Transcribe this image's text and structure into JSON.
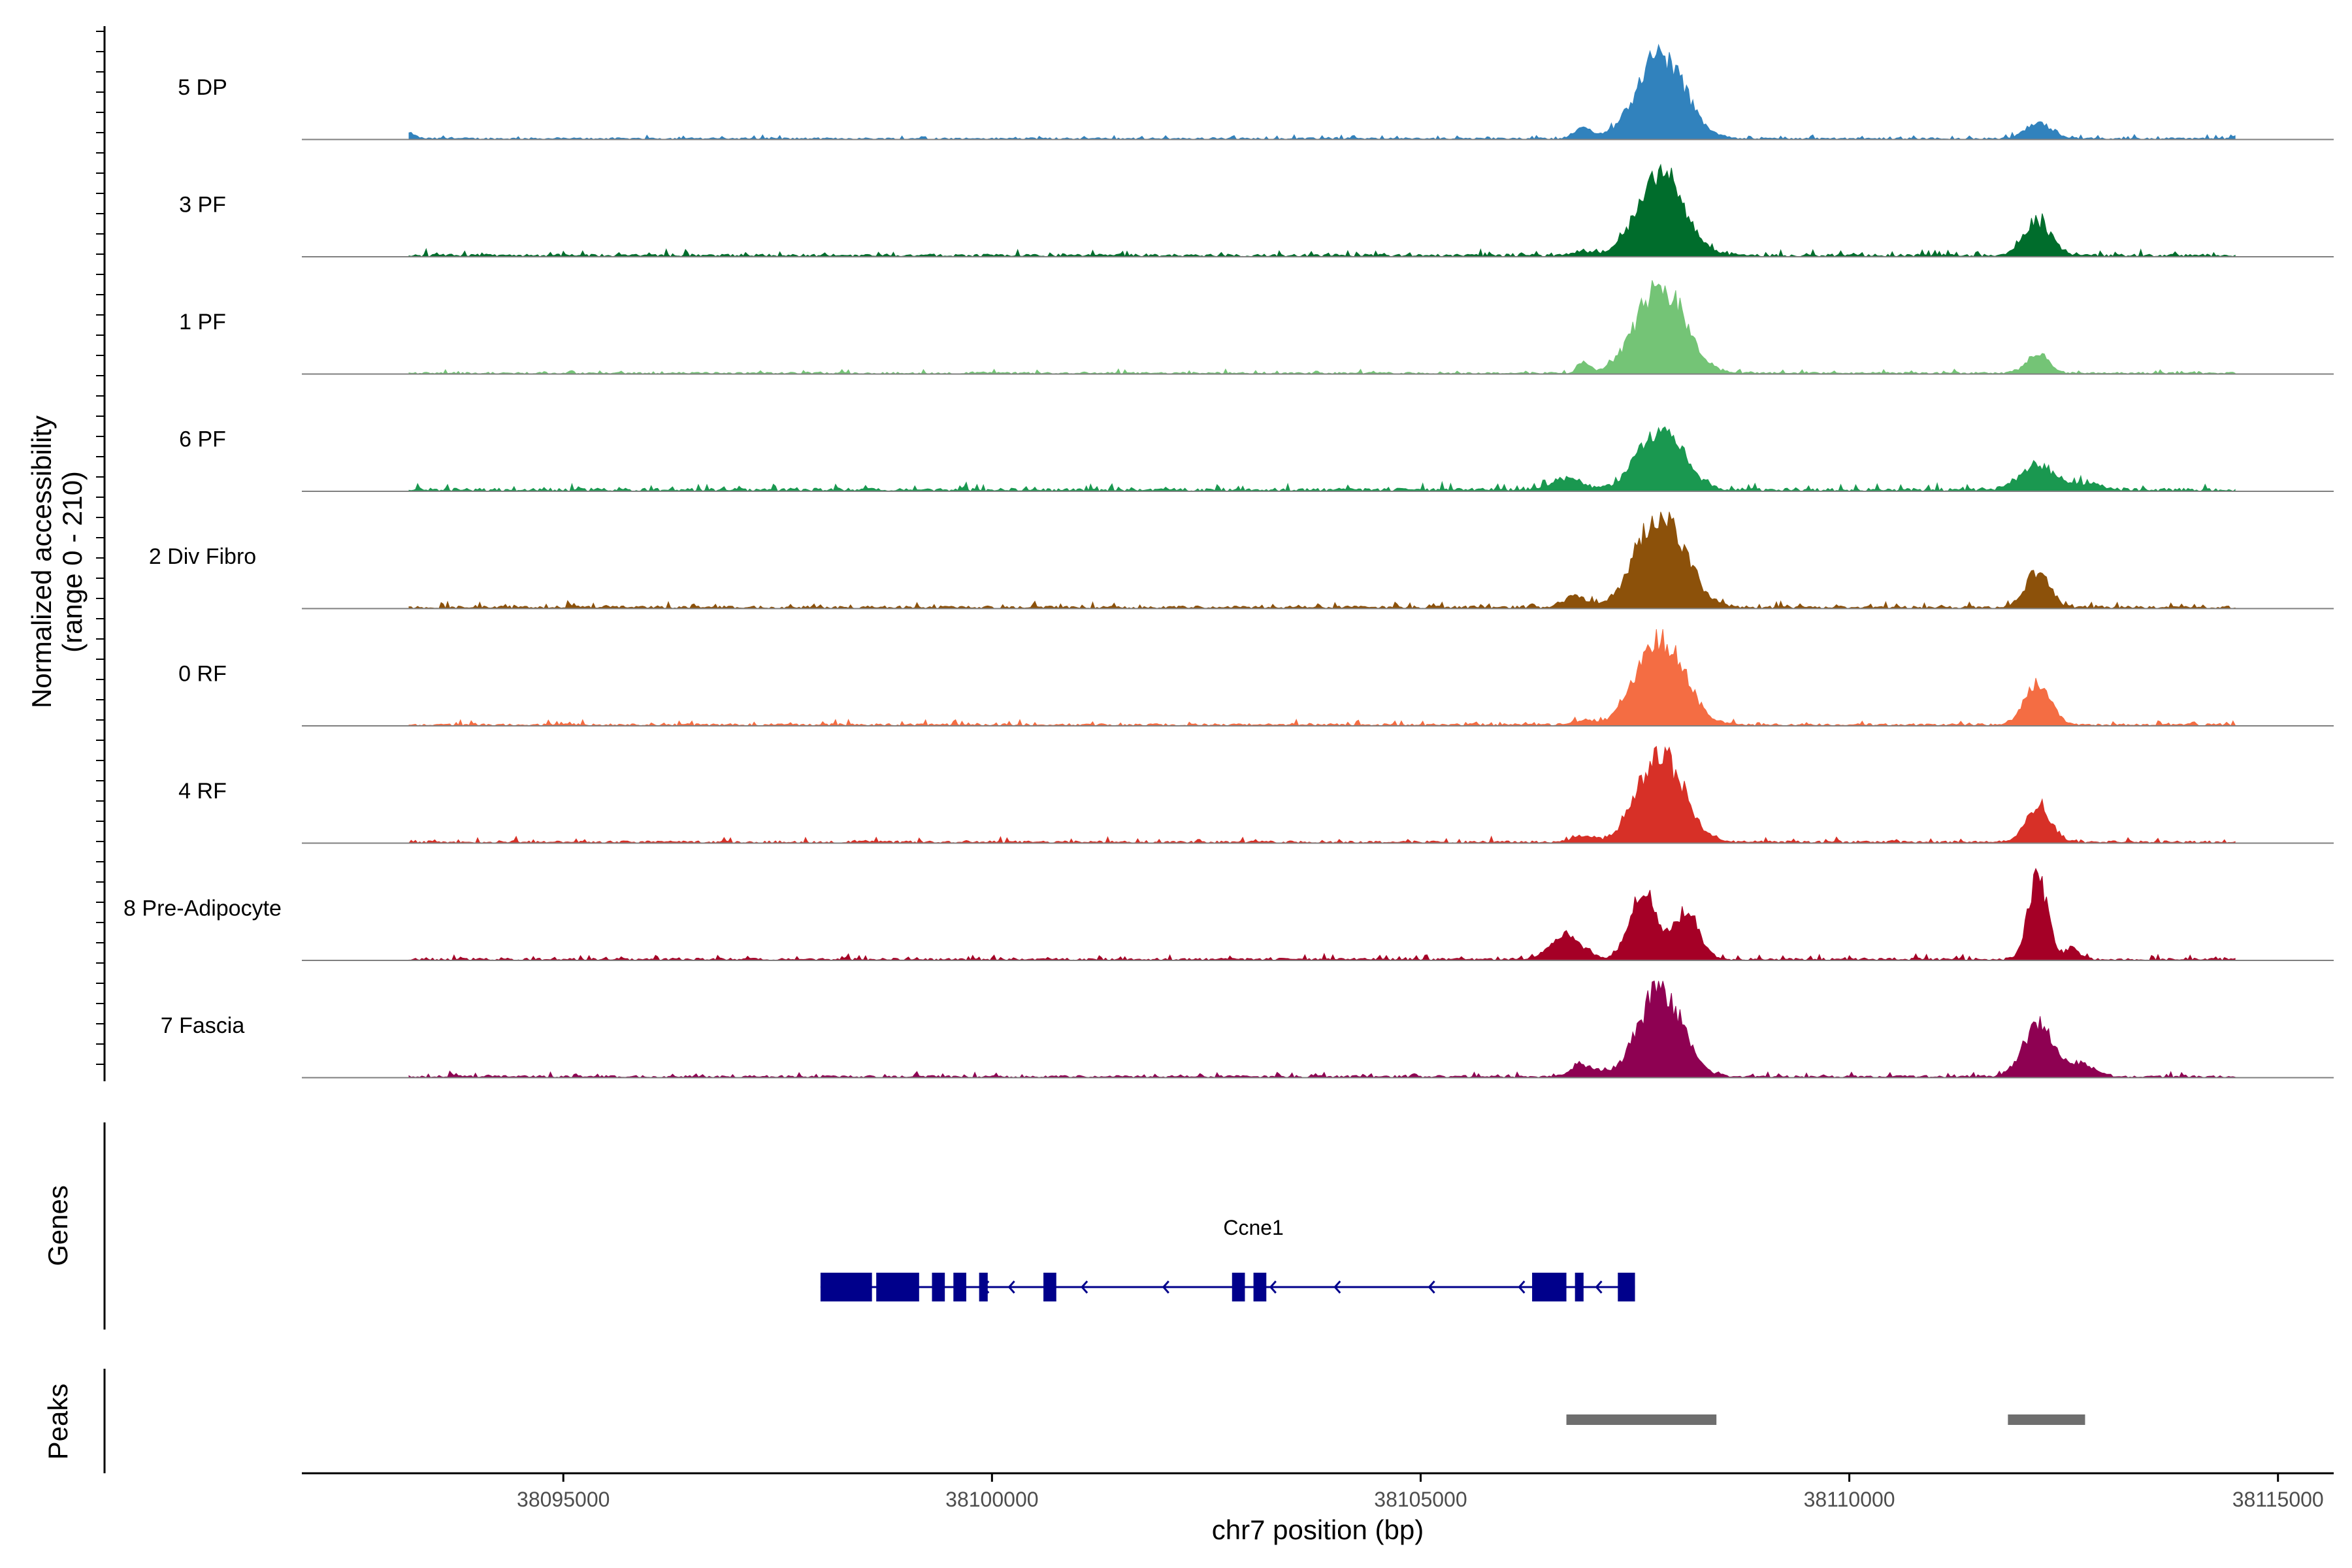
{
  "chart_data": {
    "type": "area",
    "title": "",
    "y_axis_title_line1": "Normalized accessibility",
    "y_axis_title_line2": "(range 0 - 210)",
    "ylim": [
      0,
      210
    ],
    "x_axis_title": "chr7 position (bp)",
    "xlim": [
      38091950,
      38115650
    ],
    "x_ticks": [
      38095000,
      38100000,
      38105000,
      38110000,
      38115000
    ],
    "x_tick_labels": [
      "38095000",
      "38100000",
      "38105000",
      "38110000",
      "38115000"
    ],
    "genes_panel_title": "Genes",
    "peaks_panel_title": "Peaks",
    "tracks": [
      {
        "name": "5 DP",
        "color": "#3182bd",
        "peaks": [
          [
            38093200,
            12,
            70
          ],
          [
            38106900,
            25,
            100
          ],
          [
            38107800,
            190,
            280
          ],
          [
            38112200,
            35,
            150
          ]
        ],
        "background": 4
      },
      {
        "name": "3 PF",
        "color": "#006d2c",
        "peaks": [
          [
            38107800,
            190,
            260
          ],
          [
            38112200,
            75,
            160
          ],
          [
            38106900,
            10,
            120
          ]
        ],
        "background": 6
      },
      {
        "name": "1 PF",
        "color": "#74c476",
        "peaks": [
          [
            38106900,
            25,
            70
          ],
          [
            38107800,
            200,
            280
          ],
          [
            38112200,
            45,
            120
          ]
        ],
        "background": 4
      },
      {
        "name": "6 PF",
        "color": "#1a9850",
        "peaks": [
          [
            38106700,
            25,
            180
          ],
          [
            38107800,
            140,
            260
          ],
          [
            38112200,
            55,
            200
          ],
          [
            38112800,
            15,
            160
          ]
        ],
        "background": 7
      },
      {
        "name": "2 Div Fibro",
        "color": "#8c510a",
        "peaks": [
          [
            38106800,
            25,
            130
          ],
          [
            38107800,
            210,
            280
          ],
          [
            38112200,
            80,
            140
          ]
        ],
        "background": 6
      },
      {
        "name": "0 RF",
        "color": "#f46d43",
        "peaks": [
          [
            38107800,
            200,
            270
          ],
          [
            38112200,
            95,
            150
          ],
          [
            38106900,
            10,
            110
          ]
        ],
        "background": 5
      },
      {
        "name": "4 RF",
        "color": "#d73027",
        "peaks": [
          [
            38107800,
            200,
            260
          ],
          [
            38112200,
            85,
            140
          ],
          [
            38106900,
            15,
            120
          ]
        ],
        "background": 5
      },
      {
        "name": "8 Pre-Adipocyte",
        "color": "#a50026",
        "peaks": [
          [
            38107600,
            150,
            160
          ],
          [
            38108100,
            110,
            150
          ],
          [
            38106700,
            55,
            180
          ],
          [
            38112200,
            190,
            110
          ],
          [
            38112600,
            25,
            90
          ]
        ],
        "background": 5
      },
      {
        "name": "7 Fascia",
        "color": "#8e0152",
        "peaks": [
          [
            38107800,
            200,
            250
          ],
          [
            38106900,
            25,
            140
          ],
          [
            38112200,
            120,
            170
          ],
          [
            38112700,
            30,
            160
          ]
        ],
        "background": 5
      }
    ],
    "gene": {
      "name": "Ccne1",
      "start": 38098000,
      "end": 38107500,
      "strand": "-",
      "exons": [
        [
          38098000,
          38098600
        ],
        [
          38098650,
          38099150
        ],
        [
          38099300,
          38099450
        ],
        [
          38099550,
          38099700
        ],
        [
          38099850,
          38099950
        ],
        [
          38100600,
          38100750
        ],
        [
          38102800,
          38102950
        ],
        [
          38103050,
          38103200
        ],
        [
          38106300,
          38106700
        ],
        [
          38106800,
          38106900
        ],
        [
          38107300,
          38107500
        ]
      ]
    },
    "peaks_regions": [
      [
        38106700,
        38108450
      ],
      [
        38111850,
        38112750
      ]
    ],
    "gene_color": "#00008b",
    "peak_region_color": "#6e6e6e"
  }
}
